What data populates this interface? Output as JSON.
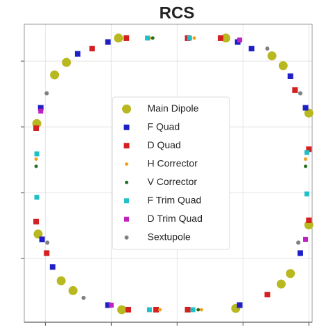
{
  "chart_data": {
    "type": "scatter",
    "title": "RCS",
    "xlim": [
      -23.2,
      20.5
    ],
    "ylim": [
      -19.7,
      25.6
    ],
    "xticks": [
      -20,
      -10,
      0,
      10,
      20
    ],
    "yticks": [
      -10,
      0,
      10,
      20
    ],
    "grid": true,
    "legend": "center",
    "series": [
      {
        "name": "Main Dipole",
        "color": "#b8b820",
        "marker": "o",
        "size": 6.5,
        "x": [
          -8.9,
          7.4,
          14.4,
          16.1,
          20.0,
          20.0,
          17.2,
          15.8,
          8.9,
          -8.4,
          -15.8,
          -17.6,
          -21.1,
          -21.3,
          -18.6,
          -16.8
        ],
        "values": [
          23.5,
          23.5,
          20.8,
          19.3,
          12.1,
          -4.9,
          -12.3,
          -13.9,
          -17.6,
          -17.8,
          -14.9,
          -13.4,
          -6.3,
          10.5,
          17.9,
          19.8
        ]
      },
      {
        "name": "F Quad",
        "color": "#1f1fc8",
        "marker": "s",
        "size": 4,
        "x": [
          -10.5,
          9.2,
          17.2,
          19.5,
          18.7,
          9.5,
          -10.5,
          -18.9,
          -20.7,
          -15.1,
          11.3,
          -20.5
        ],
        "values": [
          22.9,
          22.9,
          17.7,
          12.9,
          -9.2,
          -17.1,
          -17.1,
          -11.3,
          12.9,
          21.1,
          21.9,
          -7.1
        ]
      },
      {
        "name": "D Quad",
        "color": "#d42020",
        "marker": "s",
        "size": 4,
        "x": [
          -7.7,
          6.6,
          17.9,
          20.0,
          13.7,
          -7.4,
          -19.8,
          -21.4,
          -12.9,
          1.6,
          -3.2,
          1.6,
          -21.4,
          20.0
        ],
        "values": [
          23.5,
          23.5,
          15.6,
          -4.2,
          -15.5,
          -17.8,
          -9.2,
          9.8,
          21.9,
          -17.8,
          -17.8,
          23.5,
          -4.4,
          6.6
        ]
      },
      {
        "name": "H Corrector",
        "color": "#f0a020",
        "marker": "o",
        "size": 2.5,
        "x": [
          -4.2,
          2.6,
          19.5,
          -21.4,
          -2.6,
          3.7
        ],
        "values": [
          23.5,
          23.5,
          5.1,
          5.1,
          -17.8,
          -17.8
        ]
      },
      {
        "name": "V Corrector",
        "color": "#207020",
        "marker": "o",
        "size": 2.5,
        "x": [
          -3.7,
          3.2,
          -21.4,
          19.5
        ],
        "values": [
          23.5,
          -17.8,
          4.0,
          4.0
        ]
      },
      {
        "name": "F Trim Quad",
        "color": "#20c0c8",
        "marker": "s",
        "size": 3.5,
        "x": [
          -4.5,
          1.9,
          -21.3,
          -21.3,
          19.7,
          19.7,
          -4.2,
          2.4
        ],
        "values": [
          23.5,
          23.5,
          5.9,
          -0.7,
          6.1,
          -0.2,
          -17.8,
          -17.8
        ]
      },
      {
        "name": "D Trim Quad",
        "color": "#c020c0",
        "marker": "s",
        "size": 3.5,
        "x": [
          -20.7,
          19.5,
          -10.0,
          9.5
        ],
        "values": [
          12.4,
          -7.1,
          -17.1,
          23.2
        ]
      },
      {
        "name": "Sextupole",
        "color": "#808080",
        "marker": "o",
        "size": 3,
        "x": [
          -19.8,
          18.7,
          18.4,
          -19.7,
          -14.2,
          13.7
        ],
        "values": [
          15.1,
          15.1,
          -7.6,
          -7.6,
          -16.0,
          21.9
        ]
      }
    ]
  }
}
